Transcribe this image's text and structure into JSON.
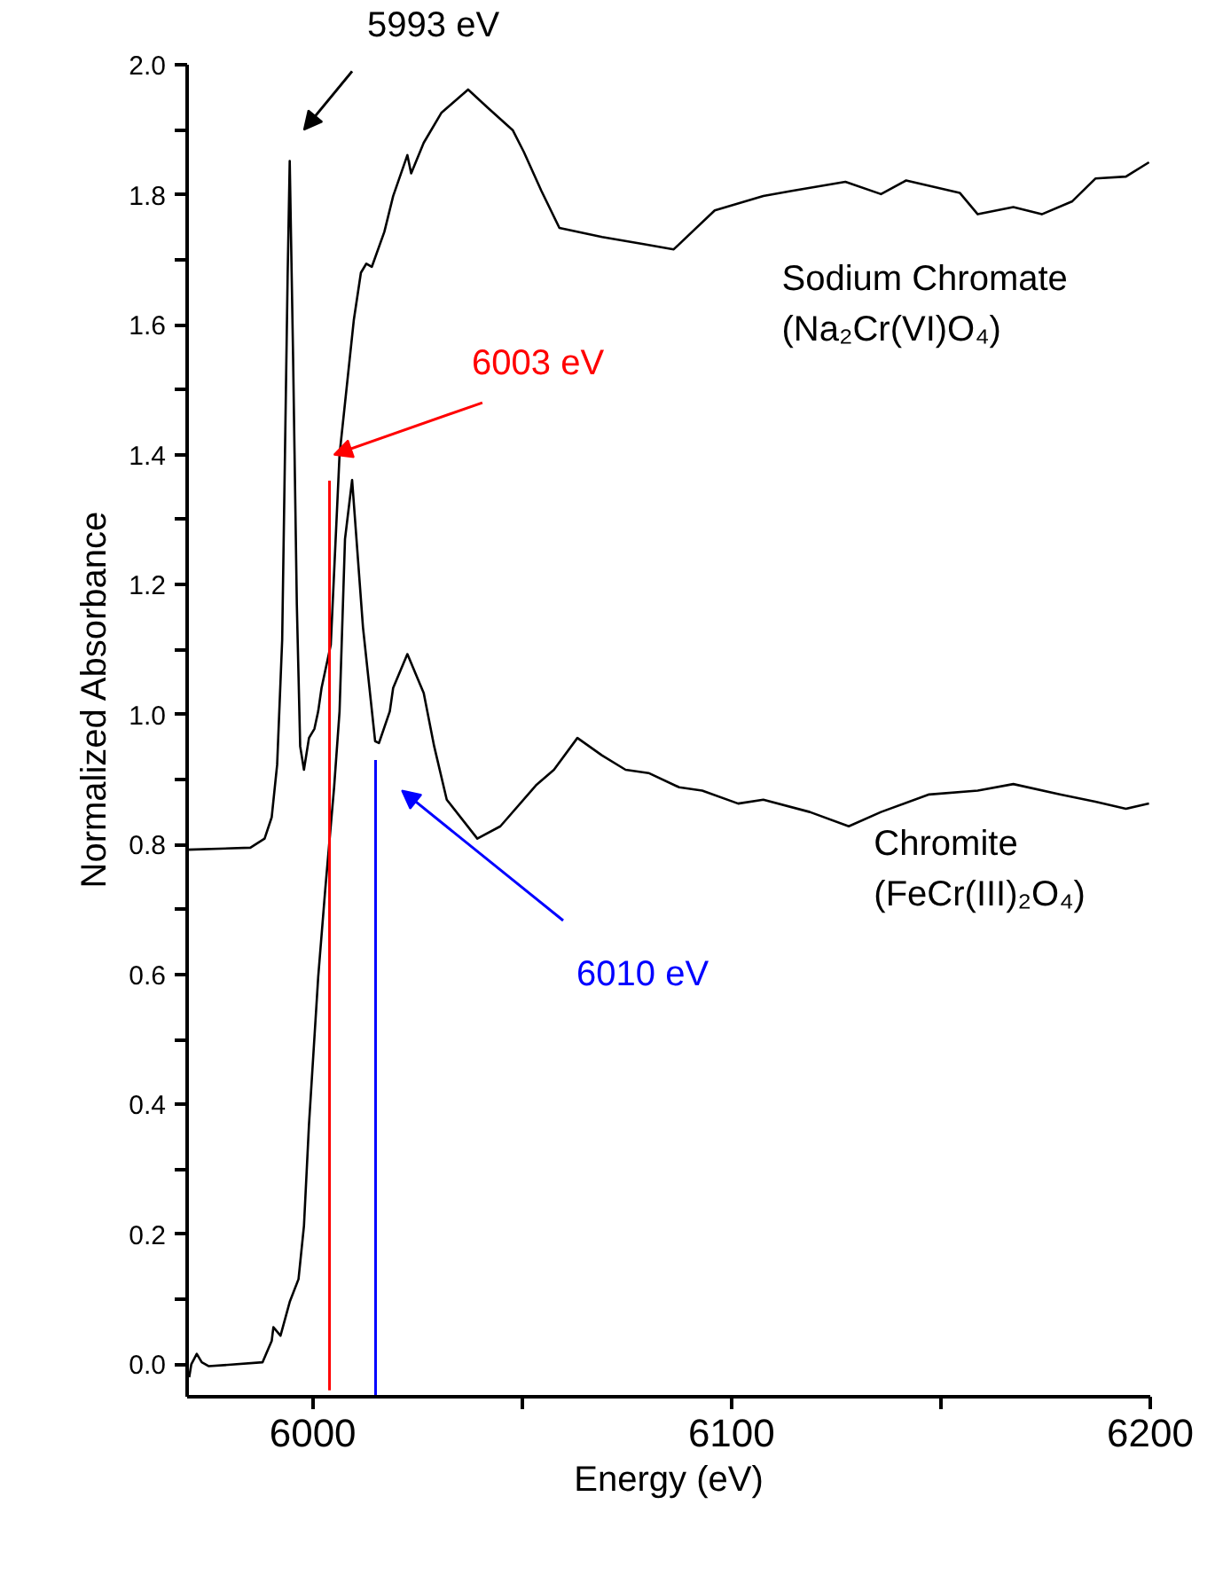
{
  "chart_data": {
    "type": "line",
    "xlabel": "Energy (eV)",
    "ylabel": "Normalized Absorbance",
    "xlim": [
      5970,
      6200
    ],
    "ylim": [
      -0.05,
      2.0
    ],
    "xticks": [
      6000,
      {
        "value": 6050,
        "label": null
      },
      6100,
      {
        "value": 6150,
        "label": null
      },
      6200
    ],
    "yticks": [
      {
        "value": 0,
        "label": "0.0"
      },
      {
        "value": 0.1,
        "label": null
      },
      0.2,
      {
        "value": 0.3,
        "label": null
      },
      0.4,
      {
        "value": 0.5,
        "label": null
      },
      0.6,
      {
        "value": 0.7,
        "label": null
      },
      0.8,
      {
        "value": 0.9,
        "label": null
      },
      {
        "value": 1.0,
        "label": "1.0"
      },
      {
        "value": 1.1,
        "label": null
      },
      1.2,
      {
        "value": 1.3,
        "label": null
      },
      1.4,
      {
        "value": 1.5,
        "label": null
      },
      1.6,
      {
        "value": 1.7,
        "label": null
      },
      1.8,
      {
        "value": 1.9,
        "label": null
      },
      {
        "value": 2.0,
        "label": "2.0"
      }
    ],
    "grid": false,
    "marker": "none",
    "line_style": "solid",
    "annotations": [
      "5993 eV"
    ],
    "series": [
      {
        "name": "Sodium Chromate\n(Na₂Cr(VI)O₄)",
        "color": "#000000",
        "x": [
          5970.1,
          5985.1,
          5988.5,
          5990.2,
          5991.5,
          5992.7,
          5994.0,
          5994.5,
          5995.3,
          5996.2,
          5997.0,
          5997.9,
          5999.1,
          6000.4,
          6001.3,
          6002.1,
          6004.3,
          6006.4,
          6009.8,
          6011.5,
          6012.8,
          6014.1,
          6017.1,
          6019.2,
          6022.6,
          6023.5,
          6026.5,
          6030.7,
          6037.1,
          6041.8,
          6047.8,
          6050.4,
          6054.6,
          6058.9,
          6069.1,
          6079.0,
          6086.2,
          6096.0,
          6107.6,
          6114.4,
          6127.2,
          6135.7,
          6141.7,
          6154.5,
          6158.8,
          6167.3,
          6174.1,
          6181.4,
          6186.9,
          6194.2,
          6199.7
        ],
        "values": [
          0.792,
          0.795,
          0.809,
          0.842,
          0.923,
          1.115,
          1.675,
          1.852,
          1.552,
          1.169,
          0.951,
          0.915,
          0.964,
          0.978,
          1.005,
          1.041,
          1.107,
          1.4,
          1.607,
          1.68,
          1.694,
          1.689,
          1.743,
          1.798,
          1.861,
          1.833,
          1.88,
          1.926,
          1.962,
          1.934,
          1.899,
          1.866,
          1.806,
          1.749,
          1.735,
          1.724,
          1.716,
          1.776,
          1.798,
          1.806,
          1.82,
          1.801,
          1.822,
          1.803,
          1.77,
          1.781,
          1.77,
          1.79,
          1.825,
          1.828,
          1.85
        ]
      },
      {
        "name": "Chromite\n(FeCr(III)₂O₄)",
        "color": "#000000",
        "x": [
          5970.5,
          5971.0,
          5972.3,
          5973.5,
          5975.2,
          5988.0,
          5990.2,
          5990.6,
          5992.3,
          5994.5,
          5996.6,
          5997.9,
          5999.1,
          6001.3,
          6003.0,
          6005.1,
          6006.4,
          6007.7,
          6009.4,
          6012.0,
          6014.9,
          6015.8,
          6018.4,
          6019.2,
          6022.6,
          6026.5,
          6029.0,
          6032.0,
          6039.3,
          6044.8,
          6053.3,
          6057.6,
          6063.2,
          6069.1,
          6074.7,
          6080.2,
          6087.5,
          6093.0,
          6101.6,
          6107.6,
          6118.7,
          6128.0,
          6135.7,
          6147.2,
          6158.8,
          6167.3,
          6178.4,
          6186.9,
          6194.2,
          6199.7
        ],
        "values": [
          -0.02,
          0.0,
          0.016,
          0.003,
          -0.003,
          0.003,
          0.036,
          0.057,
          0.044,
          0.096,
          0.131,
          0.213,
          0.369,
          0.596,
          0.732,
          0.888,
          1.005,
          1.27,
          1.361,
          1.134,
          0.959,
          0.956,
          1.005,
          1.041,
          1.093,
          1.033,
          0.951,
          0.869,
          0.809,
          0.828,
          0.891,
          0.915,
          0.964,
          0.937,
          0.915,
          0.91,
          0.888,
          0.883,
          0.863,
          0.869,
          0.85,
          0.828,
          0.85,
          0.877,
          0.883,
          0.893,
          0.877,
          0.866,
          0.855,
          0.863
        ]
      },
      {
        "name": "6003 eV",
        "color": "#ff0000",
        "x": [
          6004,
          6004
        ],
        "values": [
          -0.04,
          1.36
        ]
      },
      {
        "name": "6010 eV",
        "color": "#0000ff",
        "x": [
          6015,
          6015
        ],
        "values": [
          -0.05,
          0.93
        ]
      }
    ]
  }
}
